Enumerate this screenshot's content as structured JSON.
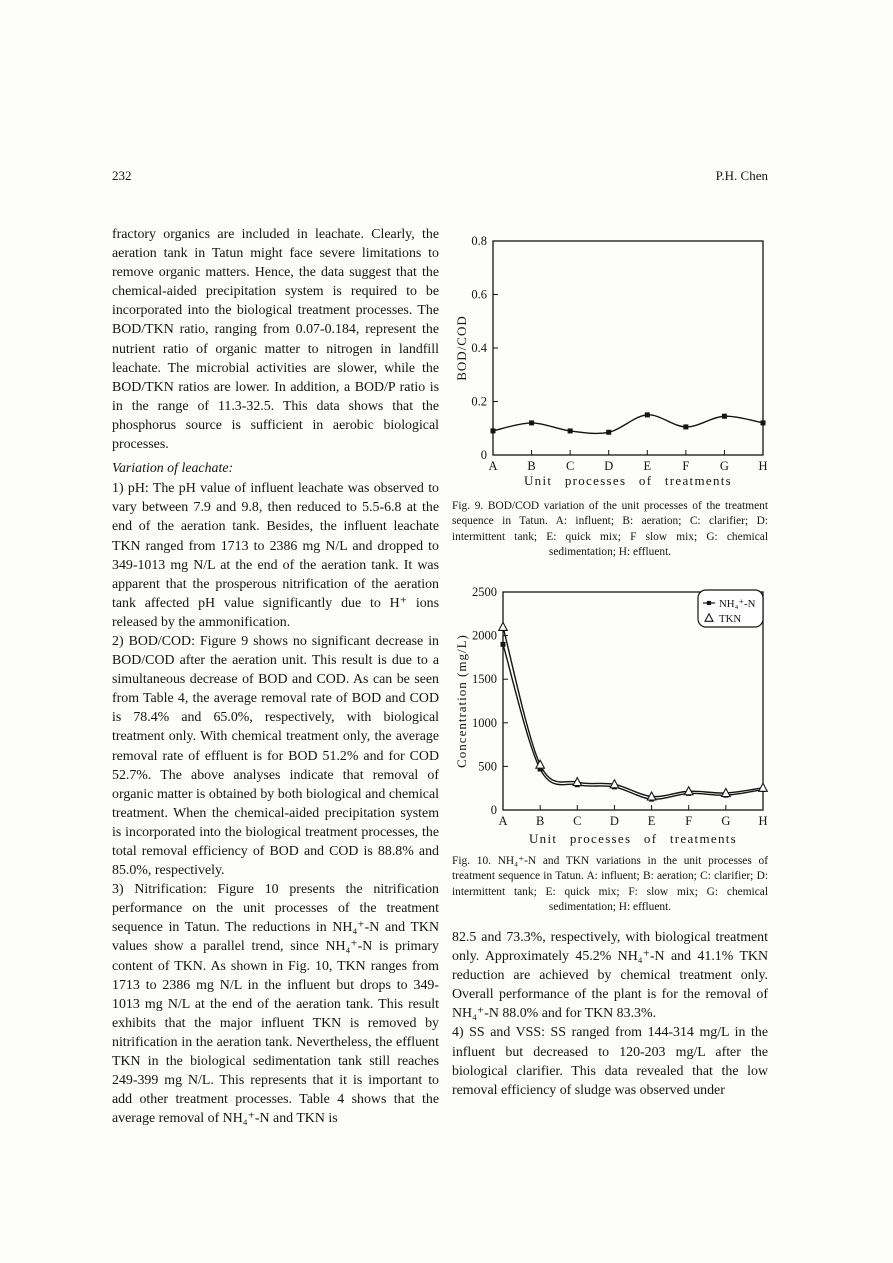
{
  "page_header": {
    "page_number": "232",
    "author": "P.H. Chen"
  },
  "left_column": {
    "para1": "fractory organics are included in leachate. Clearly, the aeration tank in Tatun might face severe limitations to remove organic matters. Hence, the data suggest that the chemical-aided precipitation system is required to be incorporated into the biological treatment processes. The BOD/TKN ratio, ranging from 0.07-0.184, represent the nutrient ratio of organic matter to nitrogen in landfill leachate. The microbial activities are slower, while the BOD/TKN ratios are lower. In addition, a BOD/P ratio is in the range of 11.3-32.5. This data shows that the phosphorus source is sufficient in aerobic biological processes.",
    "heading": "Variation of leachate:",
    "item1": "1) pH: The pH value of influent leachate was observed to vary between 7.9 and 9.8, then reduced to 5.5-6.8 at the end of the aeration tank. Besides, the influent leachate TKN ranged from 1713 to 2386 mg N/L and dropped to 349-1013 mg N/L at the end of the aeration tank. It was apparent that the prosperous nitrification of the aeration tank affected pH value significantly due to H⁺ ions released by the ammonification.",
    "item2": "2) BOD/COD: Figure 9 shows no significant decrease in BOD/COD after the aeration unit. This result is due to a simultaneous decrease of BOD and COD. As can be seen from Table 4, the average removal rate of BOD and COD is 78.4% and 65.0%, respectively, with biological treatment only. With chemical treatment only, the average removal rate of effluent is for BOD 51.2% and for COD 52.7%. The above analyses indicate that removal of organic matter is obtained by both biological and chemical treatment. When the chemical-aided precipitation system is incorporated into the biological treatment processes, the total removal efficiency of BOD and COD is 88.8% and 85.0%, respectively.",
    "item3": "3) Nitrification: Figure 10 presents the nitrification performance on the unit processes of the treatment sequence in Tatun. The reductions in NH₄⁺-N and TKN values show a parallel trend, since NH₄⁺-N is primary content of TKN. As shown in Fig. 10, TKN ranges from 1713 to 2386 mg N/L in the influent but drops to 349-1013 mg N/L at the end of the aeration tank. This result exhibits that the major influent TKN is removed by nitrification in the aeration tank. Nevertheless, the effluent TKN in the biological sedimentation tank still reaches 249-399 mg N/L. This represents that it is important to add other treatment processes. Table 4 shows that the average removal of NH₄⁺-N and TKN is"
  },
  "right_column": {
    "figure9": {
      "caption": "Fig. 9. BOD/COD variation of the unit processes of the treatment sequence in Tatun. A: influent; B: aeration; C: clarifier; D: intermittent tank; E: quick mix; F slow mix; G: chemical sedimentation; H: effluent.",
      "chart_data": {
        "type": "line",
        "categories": [
          "A",
          "B",
          "C",
          "D",
          "E",
          "F",
          "G",
          "H"
        ],
        "values": [
          0.09,
          0.12,
          0.09,
          0.085,
          0.15,
          0.105,
          0.145,
          0.12
        ],
        "marker": "filled-square",
        "title": "",
        "xlabel": "Unit processes of treatments",
        "ylabel": "BOD/COD",
        "ylim": [
          0,
          0.8
        ],
        "yticks": [
          0,
          0.2,
          0.4,
          0.6,
          0.8
        ],
        "grid": false,
        "legend_position": "none"
      }
    },
    "figure10": {
      "caption": "Fig. 10. NH₄⁺-N and TKN variations in the unit processes of treatment sequence in Tatun. A: influent; B: aeration; C: clarifier; D: intermittent tank; E: quick mix; F: slow mix; G: chemical sedimentation; H: effluent.",
      "chart_data": {
        "type": "line",
        "categories": [
          "A",
          "B",
          "C",
          "D",
          "E",
          "F",
          "G",
          "H"
        ],
        "series": [
          {
            "name": "NH₄⁺-N",
            "marker": "filled-square",
            "values": [
              1900,
              470,
              290,
              265,
              125,
              190,
              170,
              235
            ]
          },
          {
            "name": "TKN",
            "marker": "open-triangle",
            "values": [
              2100,
              520,
              320,
              295,
              155,
              215,
              195,
              255
            ]
          }
        ],
        "title": "",
        "xlabel": "Unit processes of treatments",
        "ylabel": "Concentration (mg/L)",
        "ylim": [
          0,
          2500
        ],
        "yticks": [
          0,
          500,
          1000,
          1500,
          2000,
          2500
        ],
        "grid": false,
        "legend_position": "top-right"
      }
    },
    "para_continuation": "82.5 and 73.3%, respectively, with biological treatment only. Approximately 45.2% NH₄⁺-N and 41.1% TKN reduction are achieved by chemical treatment only. Overall performance of the plant is for the removal of NH₄⁺-N 88.0% and for TKN 83.3%.",
    "item4": "4) SS and VSS: SS ranged from 144-314 mg/L in the influent but decreased to 120-203 mg/L after the biological clarifier. This data revealed that the low removal efficiency of sludge was observed under"
  }
}
